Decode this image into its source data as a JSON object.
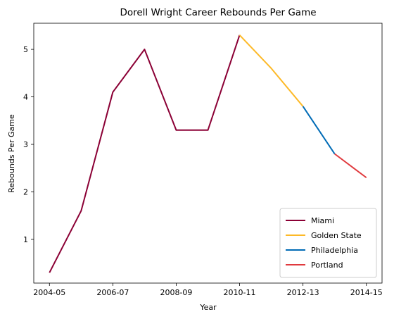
{
  "chart_data": {
    "type": "line",
    "title": "Dorell Wright Career Rebounds Per Game",
    "xlabel": "Year",
    "ylabel": "Rebounds Per Game",
    "x": [
      "2004-05",
      "2005-06",
      "2006-07",
      "2007-08",
      "2008-09",
      "2009-10",
      "2010-11",
      "2011-12",
      "2012-13",
      "2013-14",
      "2014-15"
    ],
    "xticks": [
      "2004-05",
      "2006-07",
      "2008-09",
      "2010-11",
      "2012-13",
      "2014-15"
    ],
    "ylim": [
      0.08,
      5.55
    ],
    "yticks": [
      1,
      2,
      3,
      4,
      5
    ],
    "legend_position": "lower-right",
    "grid": false,
    "series": [
      {
        "name": "Miami",
        "color": "#8B0035",
        "x": [
          "2004-05",
          "2005-06",
          "2006-07",
          "2007-08",
          "2008-09",
          "2009-10",
          "2010-11"
        ],
        "values": [
          0.3,
          1.6,
          4.1,
          5.0,
          3.3,
          3.3,
          5.3
        ]
      },
      {
        "name": "Golden State",
        "color": "#FDB927",
        "x": [
          "2010-11",
          "2011-12",
          "2012-13"
        ],
        "values": [
          5.3,
          4.6,
          3.8
        ]
      },
      {
        "name": "Philadelphia",
        "color": "#006BB6",
        "x": [
          "2012-13",
          "2013-14"
        ],
        "values": [
          3.8,
          2.8
        ]
      },
      {
        "name": "Portland",
        "color": "#E03A3E",
        "x": [
          "2013-14",
          "2014-15"
        ],
        "values": [
          2.8,
          2.3
        ]
      }
    ]
  }
}
